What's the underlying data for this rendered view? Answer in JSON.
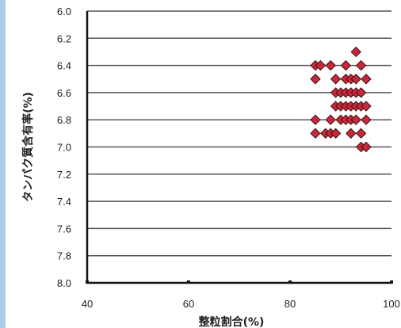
{
  "chart_data": {
    "type": "scatter",
    "title": "",
    "xlabel": "整粒割合(%)",
    "ylabel": "タンパク質含有率(%)",
    "xlim": [
      40,
      100
    ],
    "ylim": [
      6.0,
      8.0
    ],
    "y_inverted": true,
    "x_ticks": [
      "40",
      "60",
      "80",
      "100"
    ],
    "y_ticks": [
      "6.0",
      "6.2",
      "6.4",
      "6.6",
      "6.8",
      "7.0",
      "7.2",
      "7.4",
      "7.6",
      "7.8",
      "8.0"
    ],
    "grid": "horizontal",
    "legend": "none",
    "marker": "diamond",
    "marker_color": "#c8283a",
    "series": [
      {
        "values": [
          [
            85,
            6.5
          ],
          [
            85,
            6.4
          ],
          [
            86,
            6.4
          ],
          [
            88,
            6.4
          ],
          [
            91,
            6.4
          ],
          [
            93,
            6.3
          ],
          [
            94,
            6.4
          ],
          [
            89,
            6.5
          ],
          [
            91,
            6.5
          ],
          [
            92,
            6.5
          ],
          [
            93,
            6.5
          ],
          [
            95,
            6.5
          ],
          [
            89,
            6.6
          ],
          [
            90,
            6.6
          ],
          [
            91,
            6.6
          ],
          [
            92,
            6.6
          ],
          [
            93,
            6.6
          ],
          [
            94,
            6.6
          ],
          [
            89,
            6.7
          ],
          [
            90,
            6.7
          ],
          [
            91,
            6.7
          ],
          [
            92,
            6.7
          ],
          [
            93,
            6.7
          ],
          [
            94,
            6.7
          ],
          [
            95,
            6.7
          ],
          [
            85,
            6.8
          ],
          [
            88,
            6.8
          ],
          [
            90,
            6.8
          ],
          [
            91,
            6.8
          ],
          [
            92,
            6.8
          ],
          [
            93,
            6.8
          ],
          [
            95,
            6.8
          ],
          [
            85,
            6.9
          ],
          [
            87,
            6.9
          ],
          [
            88,
            6.9
          ],
          [
            89,
            6.9
          ],
          [
            92,
            6.9
          ],
          [
            94,
            6.9
          ],
          [
            94,
            7.0
          ],
          [
            95,
            7.0
          ]
        ]
      }
    ]
  }
}
